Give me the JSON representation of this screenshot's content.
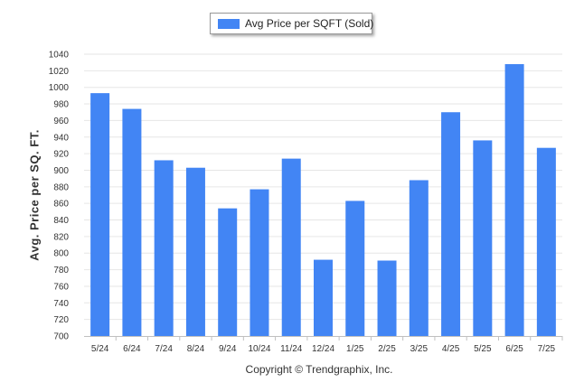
{
  "legend": {
    "label": "Avg Price per SQFT (Sold)"
  },
  "footer": {
    "text": "Copyright © Trendgraphix, Inc."
  },
  "colors": {
    "bar": "#4285f4",
    "grid": "#e6e6e6",
    "axis": "#c0c0c0",
    "tick_text": "#333333"
  },
  "chart_data": {
    "type": "bar",
    "title": "",
    "xlabel": "",
    "ylabel": "Avg. Price per SQ. FT.",
    "ylim": [
      700,
      1040
    ],
    "yticks": [
      700,
      720,
      740,
      760,
      780,
      800,
      820,
      840,
      860,
      880,
      900,
      920,
      940,
      960,
      980,
      1000,
      1020,
      1040
    ],
    "grid": true,
    "legend_position": "top-center",
    "categories": [
      "5/24",
      "6/24",
      "7/24",
      "8/24",
      "9/24",
      "10/24",
      "11/24",
      "12/24",
      "1/25",
      "2/25",
      "3/25",
      "4/25",
      "5/25",
      "6/25",
      "7/25"
    ],
    "series": [
      {
        "name": "Avg Price per SQFT (Sold)",
        "values": [
          993,
          974,
          912,
          903,
          854,
          877,
          914,
          792,
          863,
          791,
          888,
          970,
          936,
          1028,
          927
        ]
      }
    ]
  }
}
